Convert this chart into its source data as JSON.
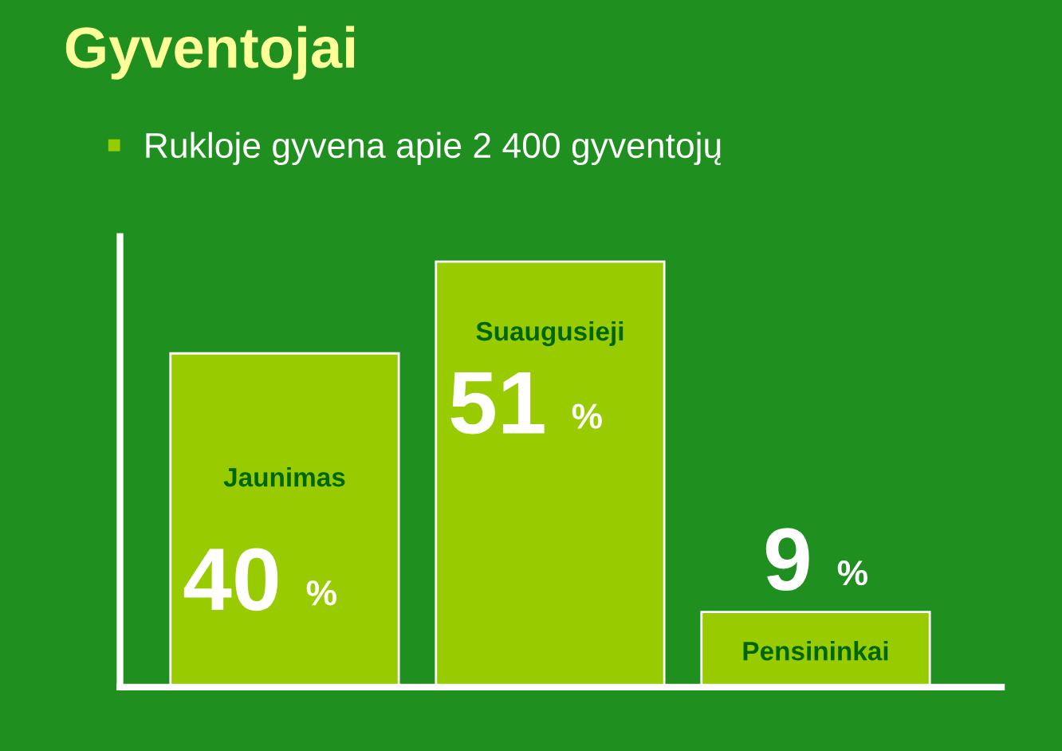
{
  "chart_data": {
    "type": "bar",
    "title": "Gyventojai",
    "subtitle": "Rukloje gyvena apie 2 400 gyventojų",
    "categories": [
      "Jaunimas",
      "Suaugusieji",
      "Pensininkai"
    ],
    "values": [
      40,
      51,
      9
    ],
    "value_labels": [
      "40 %",
      "51 %",
      "9 %"
    ],
    "color": "#99cc00",
    "ylim": [
      0,
      54
    ],
    "tick_labels": false,
    "grid": false,
    "legend": false
  }
}
